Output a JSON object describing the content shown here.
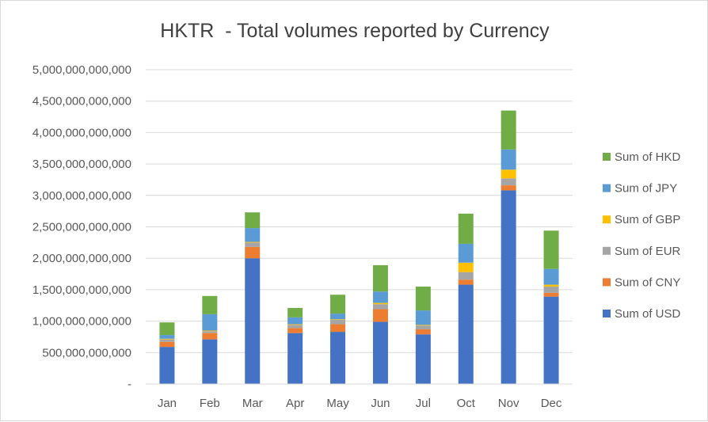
{
  "chart_data": {
    "type": "bar",
    "stacked": true,
    "title": "HKTR  - Total volumes reported by Currency",
    "xlabel": "",
    "ylabel": "",
    "categories": [
      "Jan",
      "Feb",
      "Mar",
      "Apr",
      "May",
      "Jun",
      "Jul",
      "Oct",
      "Nov",
      "Dec"
    ],
    "ylim": [
      0,
      5000000000000
    ],
    "yticks": [
      0,
      500000000000,
      1000000000000,
      1500000000000,
      2000000000000,
      2500000000000,
      3000000000000,
      3500000000000,
      4000000000000,
      4500000000000,
      5000000000000
    ],
    "ytick_labels": [
      "-",
      "500,000,000,000",
      "1,000,000,000,000",
      "1,500,000,000,000",
      "2,000,000,000,000",
      "2,500,000,000,000",
      "3,000,000,000,000",
      "3,500,000,000,000",
      "4,000,000,000,000",
      "4,500,000,000,000",
      "5,000,000,000,000"
    ],
    "grid": true,
    "legend_position": "right",
    "series": [
      {
        "name": "Sum of USD",
        "color": "#4472C4",
        "values": [
          590000000000,
          710000000000,
          2000000000000,
          810000000000,
          830000000000,
          990000000000,
          790000000000,
          1580000000000,
          3080000000000,
          1390000000000
        ]
      },
      {
        "name": "Sum of CNY",
        "color": "#ED7D31",
        "values": [
          80000000000,
          100000000000,
          180000000000,
          80000000000,
          120000000000,
          200000000000,
          80000000000,
          80000000000,
          80000000000,
          60000000000
        ]
      },
      {
        "name": "Sum of EUR",
        "color": "#A5A5A5",
        "values": [
          40000000000,
          30000000000,
          70000000000,
          50000000000,
          70000000000,
          80000000000,
          60000000000,
          120000000000,
          110000000000,
          100000000000
        ]
      },
      {
        "name": "Sum of GBP",
        "color": "#FFC000",
        "values": [
          10000000000,
          10000000000,
          10000000000,
          10000000000,
          10000000000,
          20000000000,
          10000000000,
          150000000000,
          140000000000,
          30000000000
        ]
      },
      {
        "name": "Sum of JPY",
        "color": "#5B9BD5",
        "values": [
          60000000000,
          260000000000,
          220000000000,
          110000000000,
          90000000000,
          180000000000,
          230000000000,
          300000000000,
          320000000000,
          250000000000
        ]
      },
      {
        "name": "Sum of HKD",
        "color": "#70AD47",
        "values": [
          200000000000,
          290000000000,
          250000000000,
          150000000000,
          300000000000,
          420000000000,
          380000000000,
          480000000000,
          620000000000,
          610000000000
        ]
      }
    ]
  }
}
